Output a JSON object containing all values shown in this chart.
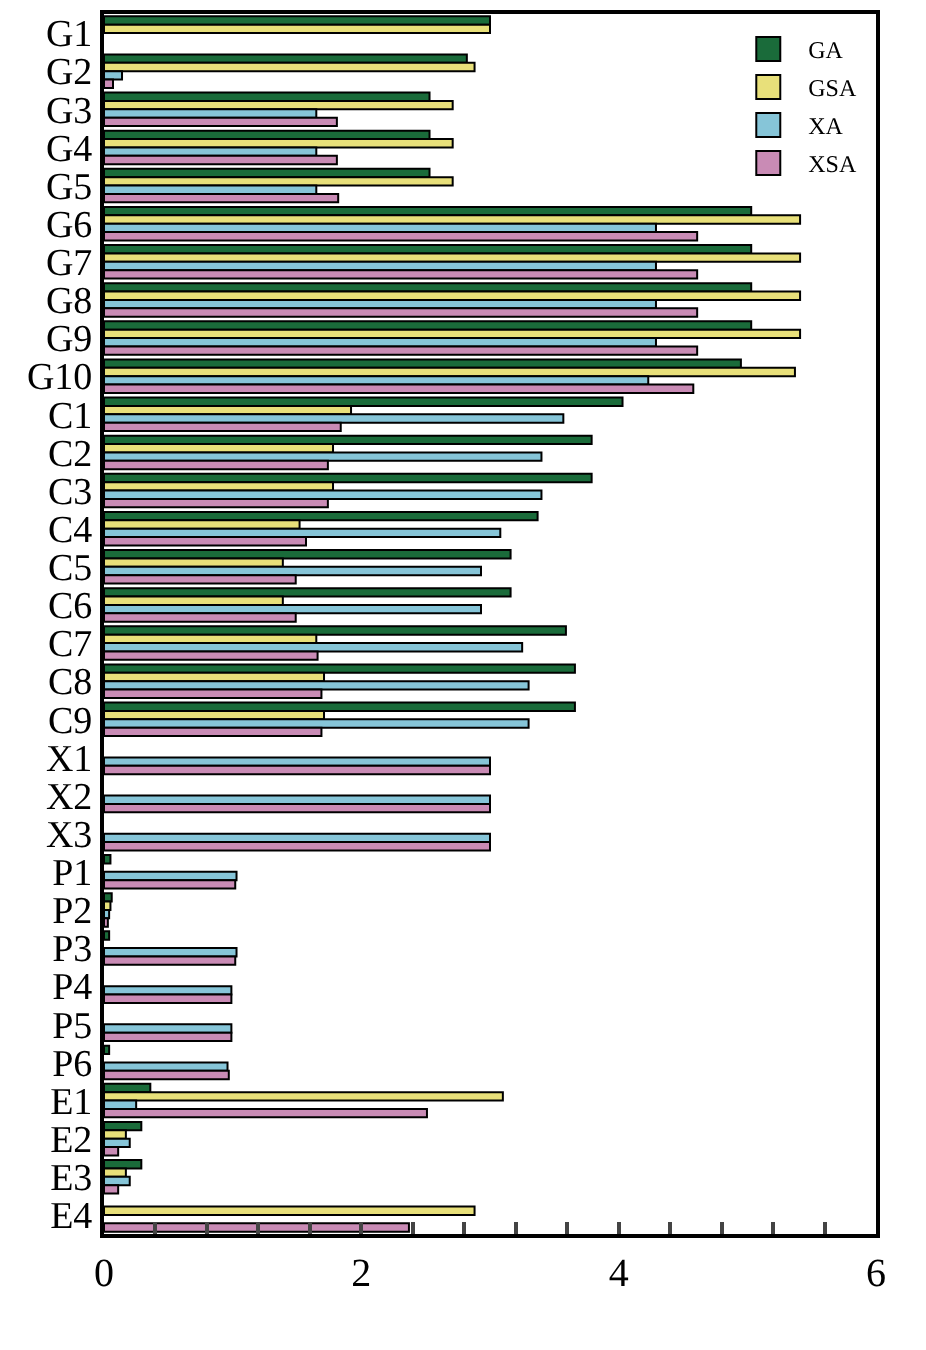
{
  "chart_data": {
    "type": "bar",
    "orientation": "horizontal",
    "categories": [
      "G1",
      "G2",
      "G3",
      "G4",
      "G5",
      "G6",
      "G7",
      "G8",
      "G9",
      "G10",
      "C1",
      "C2",
      "C3",
      "C4",
      "C5",
      "C6",
      "C7",
      "C8",
      "C9",
      "X1",
      "X2",
      "X3",
      "P1",
      "P2",
      "P3",
      "P4",
      "P5",
      "P6",
      "E1",
      "E2",
      "E3",
      "E4"
    ],
    "series": [
      {
        "name": "GA",
        "color": "#1a6b3a",
        "values": [
          3.0,
          2.82,
          2.53,
          2.53,
          2.53,
          5.03,
          5.03,
          5.03,
          5.03,
          4.95,
          4.03,
          3.79,
          3.79,
          3.37,
          3.16,
          3.16,
          3.59,
          3.66,
          3.66,
          null,
          null,
          null,
          0.05,
          0.06,
          0.04,
          null,
          null,
          0.04,
          0.36,
          0.29,
          0.29,
          null
        ]
      },
      {
        "name": "GSA",
        "color": "#e8e07a",
        "values": [
          3.0,
          2.88,
          2.71,
          2.71,
          2.71,
          5.41,
          5.41,
          5.41,
          5.41,
          5.37,
          1.92,
          1.78,
          1.78,
          1.52,
          1.39,
          1.39,
          1.65,
          1.71,
          1.71,
          null,
          null,
          null,
          null,
          0.05,
          null,
          null,
          null,
          null,
          3.1,
          0.17,
          0.17,
          2.88
        ]
      },
      {
        "name": "XA",
        "color": "#86c5d8",
        "values": [
          null,
          0.14,
          1.65,
          1.65,
          1.65,
          4.29,
          4.29,
          4.29,
          4.29,
          4.23,
          3.57,
          3.4,
          3.4,
          3.08,
          2.93,
          2.93,
          3.25,
          3.3,
          3.3,
          3.0,
          3.0,
          3.0,
          1.03,
          0.04,
          1.03,
          0.99,
          0.99,
          0.96,
          0.25,
          0.2,
          0.2,
          null
        ]
      },
      {
        "name": "XSA",
        "color": "#c98bb5",
        "values": [
          null,
          0.07,
          1.81,
          1.81,
          1.82,
          4.61,
          4.61,
          4.61,
          4.61,
          4.58,
          1.84,
          1.74,
          1.74,
          1.57,
          1.49,
          1.49,
          1.66,
          1.69,
          1.69,
          3.0,
          3.0,
          3.0,
          1.02,
          0.03,
          1.02,
          0.99,
          0.99,
          0.97,
          2.51,
          0.11,
          0.11,
          2.37
        ]
      }
    ],
    "xlim": [
      0,
      6
    ],
    "xticks": [
      0,
      {
        "value": 0.4,
        "label": null
      },
      {
        "value": 0.8,
        "label": null
      },
      {
        "value": 1.2,
        "label": null
      },
      {
        "value": 1.6,
        "label": null
      },
      2,
      {
        "value": 2.4,
        "label": null
      },
      {
        "value": 2.8,
        "label": null
      },
      {
        "value": 3.2,
        "label": null
      },
      {
        "value": 3.6,
        "label": null
      },
      4,
      {
        "value": 4.4,
        "label": null
      },
      {
        "value": 4.8,
        "label": null
      },
      {
        "value": 5.2,
        "label": null
      },
      {
        "value": 5.6,
        "label": null
      },
      6
    ],
    "legend": "top right"
  }
}
